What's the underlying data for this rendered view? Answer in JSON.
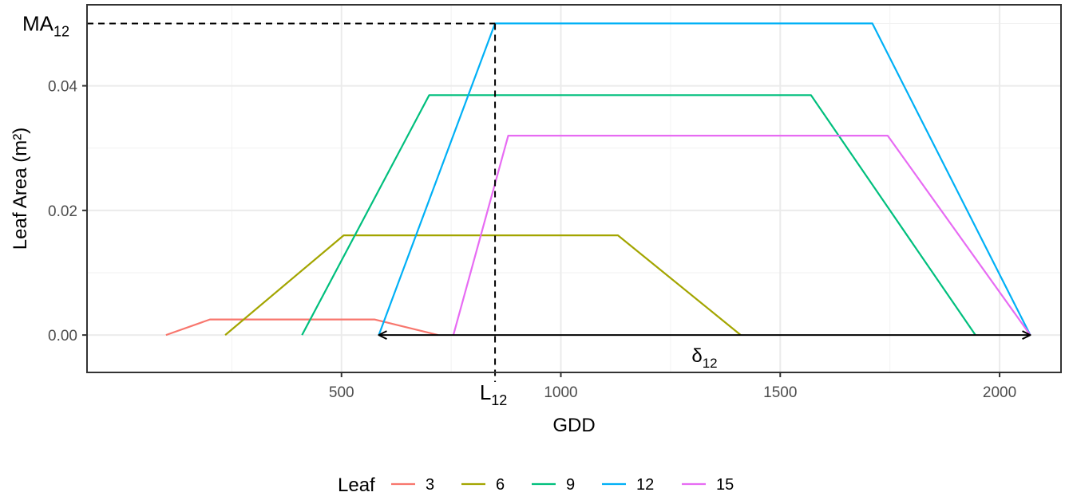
{
  "chart_data": {
    "type": "line",
    "xlabel": "GDD",
    "ylabel": "Leaf Area (m²)",
    "xlim": [
      -80,
      2140
    ],
    "ylim": [
      -0.006,
      0.053
    ],
    "x_ticks": [
      500,
      1000,
      1500,
      2000
    ],
    "x_tick_labels": [
      "500",
      "1000",
      "1500",
      "2000"
    ],
    "y_ticks": [
      0.0,
      0.02,
      0.04
    ],
    "y_tick_labels": [
      "0.00",
      "0.02",
      "0.04"
    ],
    "grid": true,
    "legend": {
      "title": "Leaf",
      "position": "bottom"
    },
    "series": [
      {
        "name": "3",
        "color": "#F8766D",
        "x": [
          100,
          200,
          575,
          720
        ],
        "y": [
          0,
          0.0025,
          0.0025,
          0
        ]
      },
      {
        "name": "6",
        "color": "#A3A500",
        "x": [
          235,
          505,
          1130,
          1410
        ],
        "y": [
          0,
          0.016,
          0.016,
          0
        ]
      },
      {
        "name": "9",
        "color": "#00BF7D",
        "x": [
          410,
          700,
          1570,
          1945
        ],
        "y": [
          0,
          0.0385,
          0.0385,
          0
        ]
      },
      {
        "name": "12",
        "color": "#00B0F6",
        "x": [
          585,
          850,
          1710,
          2070
        ],
        "y": [
          0,
          0.05,
          0.05,
          0
        ]
      },
      {
        "name": "15",
        "color": "#E76BF3",
        "x": [
          755,
          880,
          1745,
          2070
        ],
        "y": [
          0,
          0.032,
          0.032,
          0
        ]
      }
    ],
    "annotations": {
      "ma_label_main": "MA",
      "ma_label_sub": "12",
      "ma_value": 0.05,
      "l_label_main": "L",
      "l_label_sub": "12",
      "l_value": 850,
      "delta_label_main": "δ",
      "delta_label_sub": "12",
      "delta_range": [
        585,
        2070
      ],
      "line_color": "#000000"
    }
  }
}
